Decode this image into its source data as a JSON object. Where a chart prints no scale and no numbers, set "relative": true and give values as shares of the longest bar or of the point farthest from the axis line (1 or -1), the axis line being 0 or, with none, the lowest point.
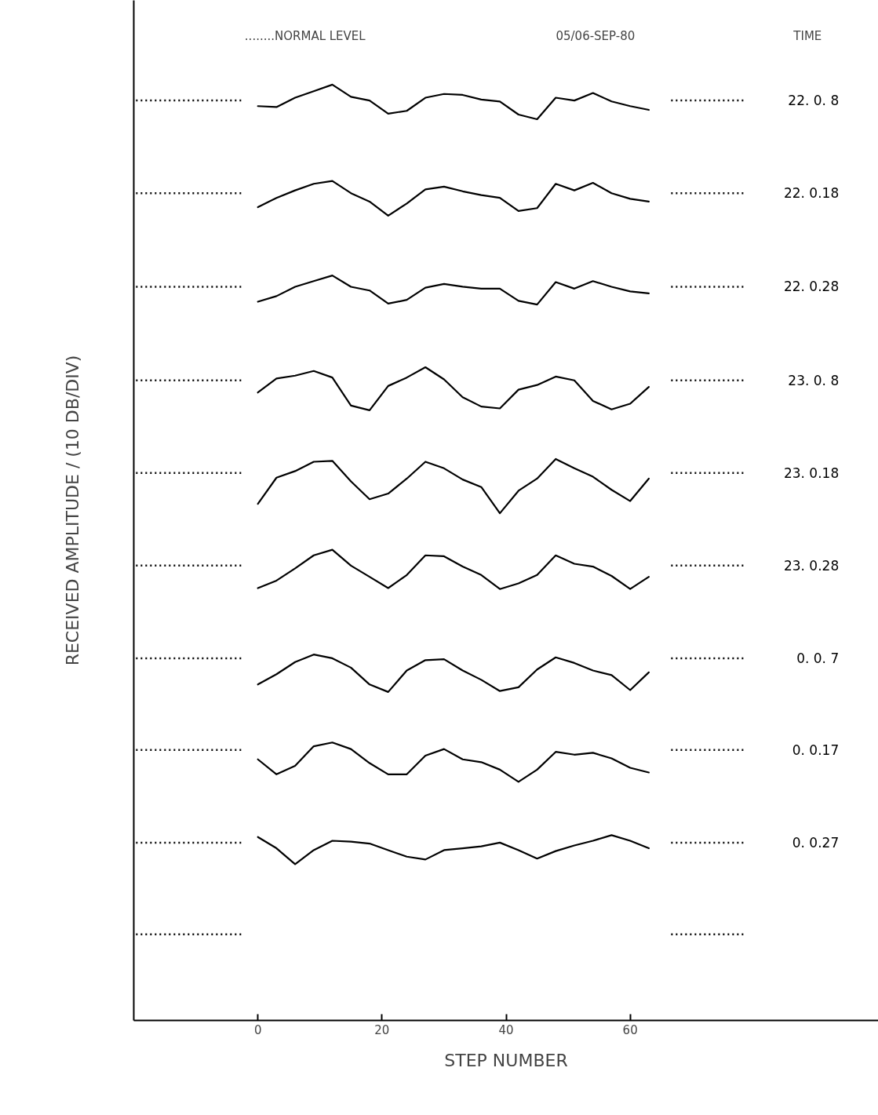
{
  "chart_data": {
    "type": "line",
    "relative": true,
    "xlabel": "STEP NUMBER",
    "ylabel": "RECEIVED AMPLITUDE / (10 DB/DIV)",
    "annotations": [
      "........NORMAL LEVEL",
      "05/06-SEP-80",
      "TIME"
    ],
    "x": [
      0,
      3,
      6,
      9,
      12,
      15,
      18,
      21,
      24,
      27,
      30,
      33,
      36,
      39,
      42,
      45,
      48,
      51,
      54,
      57,
      60,
      63
    ],
    "xlim": [
      -20,
      100
    ],
    "xticks": [
      0,
      20,
      40,
      60
    ],
    "line_style": "solid",
    "series": [
      {
        "name": "22. 0. 8",
        "color": "#000000",
        "values": [
          0.977,
          0.976,
          0.986,
          0.993,
          1,
          0.987,
          0.983,
          0.969,
          0.972,
          0.986,
          0.99,
          0.989,
          0.984,
          0.982,
          0.968,
          0.963,
          0.986,
          0.983,
          0.991,
          0.982,
          0.977,
          0.973
        ]
      },
      {
        "name": "22. 0.18",
        "color": "#000000",
        "values": [
          0.869,
          0.879,
          0.887,
          0.894,
          0.897,
          0.884,
          0.875,
          0.86,
          0.873,
          0.888,
          0.891,
          0.886,
          0.882,
          0.879,
          0.865,
          0.868,
          0.894,
          0.887,
          0.895,
          0.884,
          0.878,
          0.875
        ]
      },
      {
        "name": "22. 0.28",
        "color": "#000000",
        "values": [
          0.768,
          0.774,
          0.784,
          0.79,
          0.796,
          0.784,
          0.78,
          0.766,
          0.77,
          0.783,
          0.787,
          0.784,
          0.782,
          0.782,
          0.769,
          0.765,
          0.789,
          0.782,
          0.79,
          0.784,
          0.779,
          0.777
        ]
      },
      {
        "name": "23. 0. 8",
        "color": "#000000",
        "values": [
          0.671,
          0.686,
          0.689,
          0.694,
          0.687,
          0.657,
          0.652,
          0.678,
          0.687,
          0.698,
          0.685,
          0.666,
          0.656,
          0.654,
          0.674,
          0.679,
          0.688,
          0.684,
          0.662,
          0.653,
          0.659,
          0.677
        ]
      },
      {
        "name": "23. 0.18",
        "color": "#000000",
        "values": [
          0.552,
          0.58,
          0.587,
          0.597,
          0.598,
          0.576,
          0.557,
          0.563,
          0.579,
          0.597,
          0.59,
          0.578,
          0.57,
          0.542,
          0.566,
          0.579,
          0.6,
          0.59,
          0.581,
          0.567,
          0.555,
          0.579
        ]
      },
      {
        "name": "23. 0.28",
        "color": "#000000",
        "values": [
          0.462,
          0.47,
          0.483,
          0.497,
          0.503,
          0.486,
          0.474,
          0.462,
          0.476,
          0.497,
          0.496,
          0.485,
          0.476,
          0.461,
          0.467,
          0.476,
          0.497,
          0.488,
          0.485,
          0.475,
          0.461,
          0.474
        ]
      },
      {
        "name": "0. 0. 7",
        "color": "#000000",
        "values": [
          0.359,
          0.37,
          0.383,
          0.391,
          0.387,
          0.377,
          0.359,
          0.351,
          0.374,
          0.385,
          0.386,
          0.374,
          0.364,
          0.352,
          0.356,
          0.375,
          0.388,
          0.382,
          0.374,
          0.369,
          0.353,
          0.372
        ]
      },
      {
        "name": "0. 0.17",
        "color": "#000000",
        "values": [
          0.279,
          0.263,
          0.272,
          0.293,
          0.297,
          0.29,
          0.275,
          0.263,
          0.263,
          0.283,
          0.29,
          0.279,
          0.276,
          0.268,
          0.255,
          0.268,
          0.287,
          0.284,
          0.286,
          0.28,
          0.27,
          0.265
        ]
      },
      {
        "name": "0. 0.27",
        "color": "#000000",
        "values": [
          0.196,
          0.184,
          0.167,
          0.182,
          0.192,
          0.191,
          0.189,
          0.182,
          0.175,
          0.172,
          0.182,
          0.184,
          0.186,
          0.19,
          0.182,
          0.173,
          0.181,
          0.187,
          0.192,
          0.198,
          0.192,
          0.184
        ]
      }
    ],
    "ref_lines": [
      {
        "axis": "y",
        "value": 0.983,
        "line_style": "dotted",
        "color": "#000000"
      },
      {
        "axis": "y",
        "value": 0.884,
        "line_style": "dotted",
        "color": "#000000"
      },
      {
        "axis": "y",
        "value": 0.784,
        "line_style": "dotted",
        "color": "#000000"
      },
      {
        "axis": "y",
        "value": 0.684,
        "line_style": "dotted",
        "color": "#000000"
      },
      {
        "axis": "y",
        "value": 0.585,
        "line_style": "dotted",
        "color": "#000000"
      },
      {
        "axis": "y",
        "value": 0.486,
        "line_style": "dotted",
        "color": "#000000"
      },
      {
        "axis": "y",
        "value": 0.387,
        "line_style": "dotted",
        "color": "#000000"
      },
      {
        "axis": "y",
        "value": 0.289,
        "line_style": "dotted",
        "color": "#000000"
      },
      {
        "axis": "y",
        "value": 0.19,
        "line_style": "dotted",
        "color": "#000000"
      },
      {
        "axis": "y",
        "value": 0.092,
        "line_style": "dotted",
        "color": "#000000"
      }
    ]
  }
}
